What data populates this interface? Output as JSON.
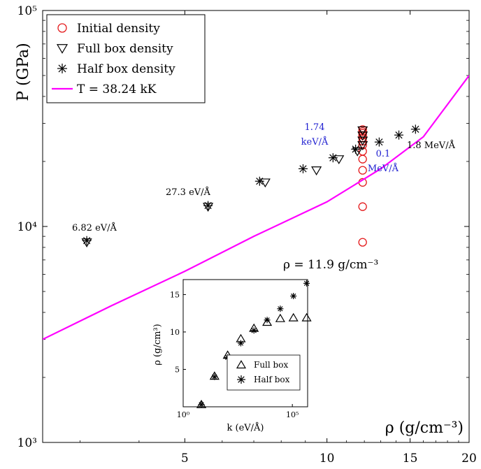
{
  "chart_data": [
    {
      "type": "scatter",
      "title": "",
      "xlabel": "ρ (g/cm⁻³)",
      "ylabel": "P (GPa)",
      "xlim": [
        2.5,
        20
      ],
      "ylim": [
        1000,
        100000
      ],
      "xscale": "log",
      "yscale": "log",
      "xticks": [
        5,
        10,
        15,
        20
      ],
      "xtick_labels": [
        "5",
        "10",
        "15",
        "20"
      ],
      "yticks": [
        1000,
        10000,
        100000
      ],
      "ytick_labels": [
        "10³",
        "10⁴",
        "10⁵"
      ],
      "grid": false,
      "legend_position": "top-left",
      "series": [
        {
          "name": "Initial density",
          "marker": "circle",
          "color": "#e41a1c",
          "x": [
            11.9,
            11.9,
            11.9,
            11.9,
            11.9,
            11.9,
            11.9,
            11.9,
            11.9,
            11.9,
            11.9,
            11.9,
            11.9
          ],
          "y": [
            8450,
            12350,
            16000,
            18200,
            20500,
            22300,
            23800,
            24800,
            25700,
            26400,
            27000,
            27500,
            28100
          ]
        },
        {
          "name": "Full box density",
          "marker": "triangle-down",
          "color": "#000000",
          "x": [
            3.1,
            5.6,
            7.4,
            9.5,
            10.6,
            11.6,
            11.9,
            11.9,
            11.9,
            11.9
          ],
          "y": [
            8450,
            12350,
            16000,
            18200,
            20500,
            22300,
            23800,
            25000,
            26400,
            27900
          ]
        },
        {
          "name": "Half box density",
          "marker": "asterisk",
          "color": "#000000",
          "x": [
            3.1,
            5.6,
            7.2,
            8.9,
            10.3,
            11.5,
            12.9,
            14.2,
            15.4
          ],
          "y": [
            8600,
            12500,
            16200,
            18500,
            20800,
            22800,
            24600,
            26500,
            28200
          ]
        },
        {
          "name": "T = 38.24 kK",
          "marker": "line",
          "color": "#ff00ff",
          "x": [
            2.5,
            3.5,
            5,
            7,
            10,
            13,
            16,
            20
          ],
          "y": [
            3000,
            4300,
            6200,
            9000,
            13000,
            18500,
            26000,
            50000
          ]
        }
      ],
      "legend": [
        "Initial density",
        "Full box density",
        "Half box density",
        "T = 38.24 kK"
      ],
      "annotations": [
        {
          "text": "6.82 eV/Å",
          "color": "#000000"
        },
        {
          "text": "27.3 eV/Å",
          "color": "#000000"
        },
        {
          "text": "1.74",
          "color": "#1f1fd0"
        },
        {
          "text": "keV/Å",
          "color": "#1f1fd0"
        },
        {
          "text": "0.1",
          "color": "#1f1fd0"
        },
        {
          "text": "MeV/Å",
          "color": "#1f1fd0"
        },
        {
          "text": "1.8 MeV/Å",
          "color": "#000000"
        },
        {
          "text": "ρ = 11.9 g/cm⁻³",
          "color": "#000000"
        }
      ]
    },
    {
      "type": "scatter",
      "title": "",
      "xlabel": "k (eV/Å)",
      "ylabel": "ρ (g/cm³)",
      "xscale": "log",
      "xlim": [
        1,
        500000
      ],
      "ylim": [
        0,
        17
      ],
      "xtick_labels": [
        "10⁰",
        "10⁵"
      ],
      "ytick_labels": [
        "5",
        "10",
        "15"
      ],
      "yticks": [
        5,
        10,
        15
      ],
      "legend_position": "bottom-right",
      "series": [
        {
          "name": "Full box",
          "marker": "triangle-up",
          "x": [
            6.82,
            27.3,
            109,
            437,
            1740,
            7000,
            28000,
            112000,
            450000
          ],
          "y": [
            0.3,
            4.1,
            6.9,
            9.1,
            10.5,
            11.3,
            11.8,
            11.9,
            11.9
          ]
        },
        {
          "name": "Half box",
          "marker": "asterisk",
          "x": [
            6.82,
            27.3,
            109,
            437,
            1740,
            7000,
            28000,
            112000,
            450000
          ],
          "y": [
            0.3,
            4.0,
            6.6,
            8.5,
            10.2,
            11.6,
            13.1,
            14.8,
            16.5
          ]
        }
      ],
      "legend": [
        "Full box",
        "Half box"
      ]
    }
  ]
}
